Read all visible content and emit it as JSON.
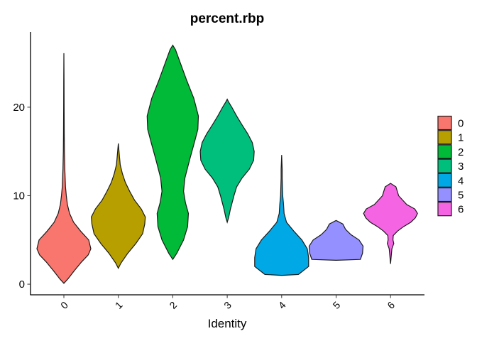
{
  "chart_data": {
    "type": "violin",
    "title": "percent.rbp",
    "xlabel": "Identity",
    "ylabel": "",
    "ylim": [
      -1.2,
      28.5
    ],
    "yticks": [
      0,
      10,
      20
    ],
    "grid": false,
    "legend_position": "right",
    "categories": [
      "0",
      "1",
      "2",
      "3",
      "4",
      "5",
      "6"
    ],
    "colors": [
      "#F8766D",
      "#B79F00",
      "#00BA38",
      "#00BF7D",
      "#00A9E6",
      "#9590FF",
      "#F564E3"
    ],
    "series": [
      {
        "name": "0",
        "color": "#F8766D",
        "profile": [
          [
            0.1,
            0.0
          ],
          [
            0.6,
            0.15
          ],
          [
            1.5,
            0.38
          ],
          [
            2.5,
            0.65
          ],
          [
            3.3,
            0.9
          ],
          [
            4.0,
            1.0
          ],
          [
            5.0,
            0.92
          ],
          [
            6.0,
            0.62
          ],
          [
            7.0,
            0.36
          ],
          [
            8.0,
            0.21
          ],
          [
            9.0,
            0.13
          ],
          [
            10.0,
            0.09
          ],
          [
            11.0,
            0.06
          ],
          [
            13.0,
            0.035
          ],
          [
            15.0,
            0.02
          ],
          [
            17.0,
            0.014
          ],
          [
            20.0,
            0.009
          ],
          [
            23.0,
            0.006
          ],
          [
            26.1,
            0.0
          ]
        ]
      },
      {
        "name": "1",
        "color": "#B79F00",
        "profile": [
          [
            1.8,
            0.0
          ],
          [
            2.4,
            0.1
          ],
          [
            3.5,
            0.35
          ],
          [
            4.6,
            0.65
          ],
          [
            5.7,
            0.9
          ],
          [
            6.8,
            0.98
          ],
          [
            7.6,
            1.0
          ],
          [
            8.5,
            0.85
          ],
          [
            9.5,
            0.6
          ],
          [
            10.5,
            0.42
          ],
          [
            11.5,
            0.26
          ],
          [
            12.5,
            0.15
          ],
          [
            13.5,
            0.07
          ],
          [
            14.5,
            0.04
          ],
          [
            15.9,
            0.0
          ]
        ]
      },
      {
        "name": "2",
        "color": "#00BA38",
        "profile": [
          [
            2.8,
            0.0
          ],
          [
            3.5,
            0.15
          ],
          [
            5.0,
            0.4
          ],
          [
            6.5,
            0.55
          ],
          [
            8.0,
            0.58
          ],
          [
            9.2,
            0.47
          ],
          [
            10.5,
            0.4
          ],
          [
            12.0,
            0.45
          ],
          [
            14.0,
            0.62
          ],
          [
            16.0,
            0.8
          ],
          [
            17.5,
            0.93
          ],
          [
            19.0,
            0.95
          ],
          [
            21.0,
            0.78
          ],
          [
            23.0,
            0.52
          ],
          [
            25.0,
            0.28
          ],
          [
            26.5,
            0.1
          ],
          [
            27.0,
            0.0
          ]
        ]
      },
      {
        "name": "3",
        "color": "#00BF7D",
        "profile": [
          [
            7.0,
            0.0
          ],
          [
            7.5,
            0.05
          ],
          [
            8.5,
            0.12
          ],
          [
            10.0,
            0.25
          ],
          [
            11.0,
            0.35
          ],
          [
            12.0,
            0.55
          ],
          [
            13.0,
            0.82
          ],
          [
            14.0,
            0.98
          ],
          [
            15.0,
            1.0
          ],
          [
            16.0,
            0.93
          ],
          [
            17.0,
            0.76
          ],
          [
            18.0,
            0.55
          ],
          [
            19.0,
            0.35
          ],
          [
            20.0,
            0.17
          ],
          [
            20.6,
            0.05
          ],
          [
            20.9,
            0.0
          ]
        ]
      },
      {
        "name": "4",
        "color": "#00A9E6",
        "profile": [
          [
            1.0,
            0.0
          ],
          [
            1.1,
            0.62
          ],
          [
            2.0,
            1.0
          ],
          [
            3.0,
            1.0
          ],
          [
            4.0,
            0.95
          ],
          [
            5.0,
            0.75
          ],
          [
            6.0,
            0.45
          ],
          [
            7.0,
            0.18
          ],
          [
            8.0,
            0.09
          ],
          [
            9.0,
            0.07
          ],
          [
            10.0,
            0.04
          ],
          [
            11.0,
            0.03
          ],
          [
            12.0,
            0.02
          ],
          [
            13.0,
            0.02
          ],
          [
            14.6,
            0.0
          ]
        ]
      },
      {
        "name": "5",
        "color": "#9590FF",
        "profile": [
          [
            2.7,
            0.0
          ],
          [
            2.8,
            0.9
          ],
          [
            3.5,
            0.98
          ],
          [
            4.3,
            1.0
          ],
          [
            5.0,
            0.85
          ],
          [
            5.6,
            0.55
          ],
          [
            6.2,
            0.35
          ],
          [
            6.8,
            0.25
          ],
          [
            7.2,
            0.0
          ]
        ]
      },
      {
        "name": "6",
        "color": "#F564E3",
        "profile": [
          [
            2.3,
            0.0
          ],
          [
            3.0,
            0.02
          ],
          [
            4.0,
            0.05
          ],
          [
            4.6,
            0.12
          ],
          [
            5.0,
            0.09
          ],
          [
            5.5,
            0.1
          ],
          [
            6.0,
            0.26
          ],
          [
            6.5,
            0.48
          ],
          [
            7.0,
            0.75
          ],
          [
            7.5,
            0.92
          ],
          [
            8.0,
            1.0
          ],
          [
            8.5,
            0.9
          ],
          [
            9.0,
            0.6
          ],
          [
            10.0,
            0.3
          ],
          [
            11.0,
            0.2
          ],
          [
            11.4,
            0.0
          ]
        ]
      }
    ]
  }
}
